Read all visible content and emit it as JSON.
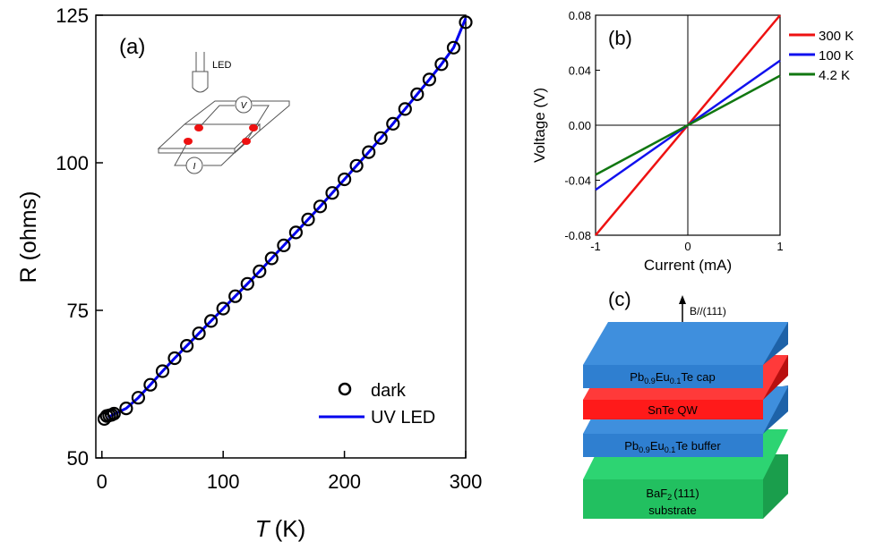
{
  "chart_data": [
    {
      "panel": "(a)",
      "type": "scatter",
      "xlabel_italic": "T",
      "xlabel_unit": "(K)",
      "ylabel": "R (ohms)",
      "xlim": [
        -5,
        300
      ],
      "ylim": [
        50,
        125
      ],
      "xticks": [
        0,
        100,
        200,
        300
      ],
      "yticks": [
        50,
        75,
        100,
        125
      ],
      "legend": {
        "position": "bottom-right",
        "entries": [
          "dark",
          "UV LED"
        ]
      },
      "inset_labels": {
        "led": "LED",
        "v": "V",
        "i": "I"
      },
      "series": [
        {
          "name": "dark",
          "style": "open-circle",
          "color": "#000000",
          "x": [
            2,
            4,
            6,
            8,
            10,
            20,
            30,
            40,
            50,
            60,
            70,
            80,
            90,
            100,
            110,
            120,
            130,
            140,
            150,
            160,
            170,
            180,
            190,
            200,
            210,
            220,
            230,
            240,
            250,
            260,
            270,
            280,
            290,
            300
          ],
          "y": [
            56.6,
            57.1,
            57.2,
            57.3,
            57.5,
            58.4,
            60.2,
            62.4,
            64.7,
            66.9,
            69.0,
            71.1,
            73.2,
            75.3,
            77.4,
            79.5,
            81.6,
            83.8,
            86.0,
            88.2,
            90.4,
            92.6,
            94.9,
            97.2,
            99.5,
            101.8,
            104.2,
            106.6,
            109.1,
            111.6,
            114.1,
            116.7,
            119.5,
            123.8
          ]
        },
        {
          "name": "UV LED",
          "style": "line",
          "color": "#0000ee",
          "x": [
            5,
            10,
            20,
            30,
            40,
            50,
            60,
            70,
            80,
            90,
            100,
            110,
            120,
            130,
            140,
            150,
            160,
            170,
            180,
            190,
            200,
            210,
            220,
            230,
            240,
            250,
            260,
            270,
            280,
            290,
            300
          ],
          "y": [
            56.9,
            57.4,
            58.4,
            60.2,
            62.4,
            64.7,
            66.9,
            69.0,
            71.1,
            73.2,
            75.3,
            77.4,
            79.5,
            81.6,
            83.8,
            86.0,
            88.2,
            90.4,
            92.6,
            94.9,
            97.2,
            99.5,
            101.8,
            104.2,
            106.6,
            109.1,
            111.6,
            114.1,
            116.7,
            119.5,
            124.5
          ]
        }
      ]
    },
    {
      "panel": "(b)",
      "type": "line",
      "xlabel": "Current (mA)",
      "ylabel": "Voltage (V)",
      "xlim": [
        -1,
        1
      ],
      "ylim": [
        -0.08,
        0.08
      ],
      "xticks": [
        "-1",
        "0",
        "1"
      ],
      "yticks": [
        "-0.08",
        "-0.04",
        "0.00",
        "0.04",
        "0.08"
      ],
      "legend": {
        "position": "right",
        "entries": [
          "300 K",
          "100 K",
          "4.2 K"
        ]
      },
      "series": [
        {
          "name": "300 K",
          "color": "#ee1111",
          "x": [
            -1,
            1
          ],
          "y": [
            -0.08,
            0.08
          ]
        },
        {
          "name": "100 K",
          "color": "#1111ee",
          "x": [
            -1,
            1
          ],
          "y": [
            -0.047,
            0.047
          ]
        },
        {
          "name": "4.2 K",
          "color": "#117711",
          "x": [
            -1,
            1
          ],
          "y": [
            -0.036,
            0.036
          ]
        }
      ]
    }
  ],
  "diagram_c": {
    "panel": "(c)",
    "field_label": "B//(111)",
    "layers": [
      {
        "id": "cap",
        "label_pre": "Pb",
        "sub1": "0.9",
        "mid": "Eu",
        "sub2": "0.1",
        "label_post": "Te cap",
        "color": "#2f7fd0"
      },
      {
        "id": "qw",
        "label_pre": "SnTe QW",
        "color": "#ff1a1a"
      },
      {
        "id": "buffer",
        "label_pre": "Pb",
        "sub1": "0.9",
        "mid": "Eu",
        "sub2": "0.1",
        "label_post": "Te buffer",
        "color": "#2f7fd0"
      },
      {
        "id": "substrate",
        "label_pre": "BaF",
        "sub1": "2",
        "label_post": "(111)",
        "line2": "substrate",
        "color": "#22c060"
      }
    ]
  },
  "colors": {
    "axis": "#000000",
    "red_dot": "#ee1111"
  }
}
